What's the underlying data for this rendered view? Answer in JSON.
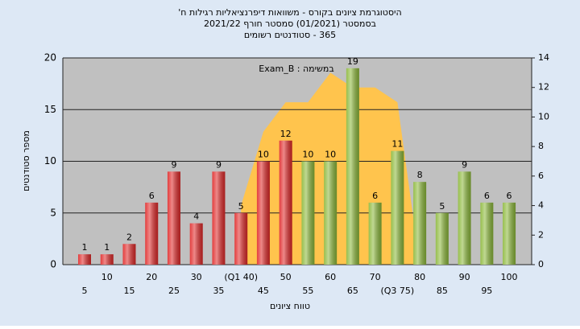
{
  "chart_data": {
    "type": "bar",
    "title": [
      "היסטוגרמת ציונים בקורס - משוואות דיפרנציאליות רגילות ח'",
      "בסמסטר  (01/2021)  סמסטר חורף  2021/22",
      "365 - סטודנטים רשומים"
    ],
    "annotation": "Exam_B : במשימה",
    "x_label": "טווח ציונים",
    "y_label": "מספר סטודנטים",
    "categories": [
      "5",
      "10",
      "15",
      "20",
      "25",
      "30",
      "35",
      "(Q1 40)",
      "45",
      "50",
      "55",
      "60",
      "65",
      "70",
      "(Q3 75)",
      "80",
      "85",
      "90",
      "95",
      "100"
    ],
    "values": [
      1,
      1,
      2,
      6,
      9,
      4,
      9,
      5,
      10,
      12,
      10,
      10,
      19,
      6,
      11,
      8,
      5,
      9,
      6,
      6
    ],
    "colors": [
      "#e02828",
      "#e02828",
      "#e02828",
      "#e02828",
      "#e02828",
      "#e02828",
      "#e02828",
      "#e02828",
      "#e02828",
      "#e02828",
      "#8cb83a",
      "#8cb83a",
      "#8cb83a",
      "#8cb83a",
      "#8cb83a",
      "#8cb83a",
      "#8cb83a",
      "#8cb83a",
      "#8cb83a",
      "#8cb83a"
    ],
    "area": {
      "axis": "y2",
      "color": "#ffc44d",
      "values": [
        null,
        null,
        null,
        null,
        null,
        null,
        null,
        4,
        9,
        11,
        11,
        13,
        12,
        12,
        11,
        0,
        null,
        null,
        null,
        null
      ]
    },
    "ylim": [
      0,
      20
    ],
    "yticks": [
      0,
      5,
      10,
      15,
      20
    ],
    "y2lim": [
      0,
      14
    ],
    "y2ticks": [
      0,
      2,
      4,
      6,
      8,
      10,
      12,
      14
    ],
    "grid": true
  }
}
